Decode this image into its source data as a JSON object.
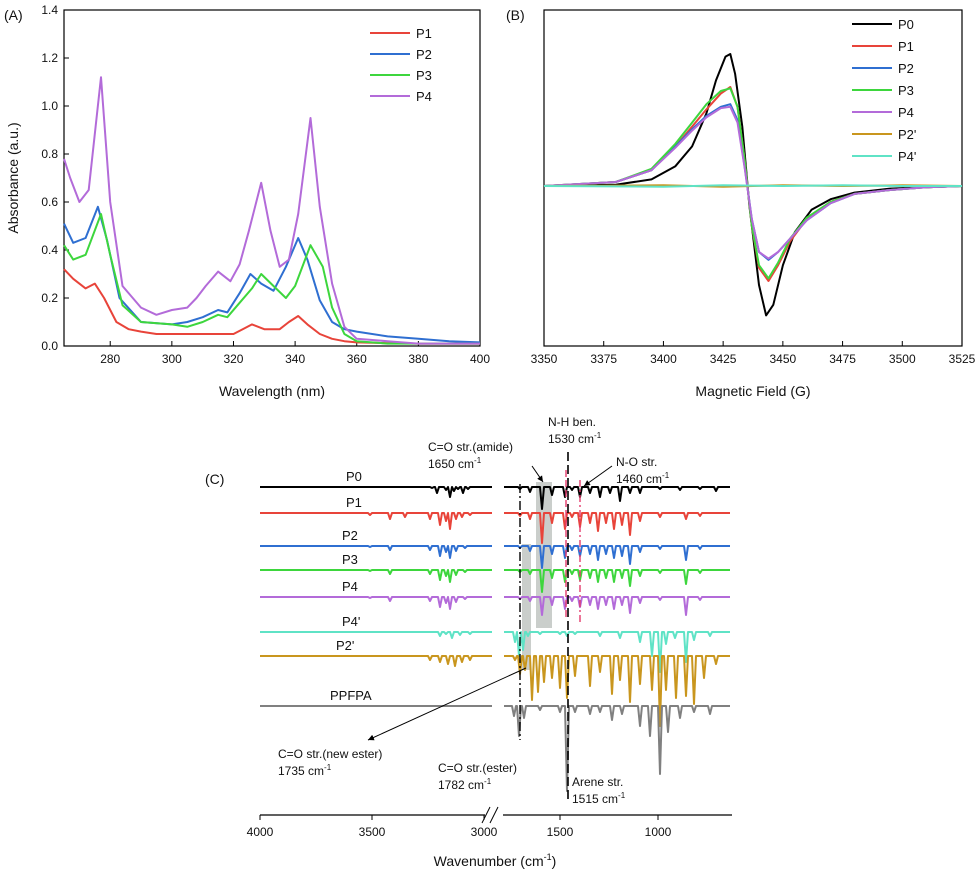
{
  "chart_data": [
    {
      "type": "line",
      "panel_label": "(A)",
      "xlabel": "Wavelength (nm)",
      "ylabel": "Absorbance (a.u.)",
      "xlim": [
        265,
        400
      ],
      "ylim": [
        0,
        1.4
      ],
      "xticks": [
        "280",
        "300",
        "320",
        "340",
        "360",
        "380",
        "400"
      ],
      "yticks": [
        "0.0",
        "0.2",
        "0.4",
        "0.6",
        "0.8",
        "1.0",
        "1.2",
        "1.4"
      ],
      "legend": "top-right",
      "series": [
        {
          "name": "P1",
          "color": "#e8443a",
          "x": [
            265,
            268,
            272,
            275,
            278,
            282,
            286,
            290,
            295,
            300,
            305,
            310,
            315,
            320,
            323,
            326,
            330,
            335,
            338,
            341,
            344,
            348,
            352,
            356,
            360,
            370,
            380,
            390,
            400
          ],
          "y": [
            0.32,
            0.28,
            0.24,
            0.26,
            0.2,
            0.1,
            0.07,
            0.06,
            0.05,
            0.05,
            0.05,
            0.05,
            0.05,
            0.05,
            0.07,
            0.09,
            0.07,
            0.07,
            0.1,
            0.125,
            0.09,
            0.05,
            0.03,
            0.02,
            0.015,
            0.012,
            0.01,
            0.01,
            0.01
          ]
        },
        {
          "name": "P2",
          "color": "#2f6fd1",
          "x": [
            265,
            268,
            272,
            276,
            279,
            283,
            290,
            300,
            305,
            310,
            315,
            318,
            322,
            325.5,
            329,
            333,
            337,
            341,
            344,
            348,
            352,
            356,
            360,
            370,
            380,
            390,
            400
          ],
          "y": [
            0.51,
            0.43,
            0.45,
            0.58,
            0.44,
            0.2,
            0.1,
            0.09,
            0.1,
            0.12,
            0.15,
            0.14,
            0.22,
            0.3,
            0.26,
            0.23,
            0.33,
            0.45,
            0.36,
            0.19,
            0.1,
            0.07,
            0.06,
            0.04,
            0.03,
            0.02,
            0.015
          ]
        },
        {
          "name": "P3",
          "color": "#3dd63d",
          "x": [
            265,
            268,
            272,
            277,
            280,
            284,
            290,
            300,
            305,
            310,
            315,
            318,
            322,
            326,
            329,
            333,
            337,
            340,
            345,
            349,
            352,
            356,
            360,
            370,
            380,
            390,
            400
          ],
          "y": [
            0.42,
            0.36,
            0.38,
            0.55,
            0.38,
            0.17,
            0.1,
            0.09,
            0.08,
            0.1,
            0.13,
            0.12,
            0.18,
            0.24,
            0.3,
            0.25,
            0.2,
            0.25,
            0.42,
            0.33,
            0.16,
            0.05,
            0.02,
            0.01,
            0.01,
            0.01,
            0.01
          ]
        },
        {
          "name": "P4",
          "color": "#b36bd9",
          "x": [
            265,
            267,
            270,
            273,
            277,
            280,
            284,
            290,
            295,
            300,
            305,
            308,
            311,
            315,
            319,
            322,
            325,
            329,
            332,
            335,
            338,
            341,
            345,
            348,
            352,
            356,
            360,
            370,
            380,
            390,
            400
          ],
          "y": [
            0.78,
            0.7,
            0.6,
            0.65,
            1.12,
            0.6,
            0.25,
            0.16,
            0.13,
            0.15,
            0.16,
            0.2,
            0.25,
            0.31,
            0.27,
            0.34,
            0.48,
            0.68,
            0.48,
            0.33,
            0.36,
            0.55,
            0.95,
            0.58,
            0.26,
            0.08,
            0.03,
            0.02,
            0.01,
            0.01,
            0.01
          ]
        }
      ]
    },
    {
      "type": "line",
      "panel_label": "(B)",
      "xlabel": "Magnetic Field (G)",
      "ylabel": "",
      "xlim": [
        3350,
        3525
      ],
      "ylim": [
        -1.1,
        1.1
      ],
      "xticks": [
        "3350",
        "3375",
        "3400",
        "3425",
        "3450",
        "3475",
        "3500",
        "3525"
      ],
      "legend": "top-right",
      "series": [
        {
          "name": "P0",
          "color": "#000000",
          "x": [
            3350,
            3380,
            3395,
            3405,
            3412,
            3418,
            3422,
            3426,
            3428,
            3430,
            3433,
            3436,
            3440,
            3443,
            3446,
            3450,
            3455,
            3462,
            3470,
            3480,
            3495,
            3510,
            3525
          ],
          "y": [
            0,
            0.01,
            0.05,
            0.15,
            0.3,
            0.55,
            0.8,
            0.98,
            1.0,
            0.85,
            0.45,
            -0.15,
            -0.75,
            -0.98,
            -0.9,
            -0.6,
            -0.35,
            -0.18,
            -0.1,
            -0.05,
            -0.02,
            -0.01,
            0
          ]
        },
        {
          "name": "P1",
          "color": "#e8443a",
          "x": [
            3350,
            3380,
            3395,
            3405,
            3412,
            3418,
            3424,
            3428,
            3431,
            3434,
            3437,
            3440,
            3444,
            3448,
            3453,
            3460,
            3470,
            3480,
            3495,
            3510,
            3525
          ],
          "y": [
            0,
            0.03,
            0.12,
            0.3,
            0.45,
            0.58,
            0.7,
            0.75,
            0.6,
            0.2,
            -0.3,
            -0.62,
            -0.72,
            -0.6,
            -0.42,
            -0.25,
            -0.12,
            -0.06,
            -0.03,
            -0.01,
            0
          ]
        },
        {
          "name": "P2",
          "color": "#2f6fd1",
          "x": [
            3350,
            3380,
            3395,
            3405,
            3412,
            3418,
            3424,
            3428,
            3431,
            3434,
            3437,
            3440,
            3444,
            3448,
            3453,
            3460,
            3470,
            3480,
            3495,
            3510,
            3525
          ],
          "y": [
            0,
            0.03,
            0.12,
            0.3,
            0.43,
            0.53,
            0.6,
            0.62,
            0.5,
            0.15,
            -0.25,
            -0.5,
            -0.56,
            -0.5,
            -0.4,
            -0.26,
            -0.13,
            -0.06,
            -0.03,
            -0.01,
            0
          ]
        },
        {
          "name": "P3",
          "color": "#3dd63d",
          "x": [
            3350,
            3380,
            3395,
            3405,
            3412,
            3418,
            3424,
            3428,
            3431,
            3434,
            3437,
            3440,
            3444,
            3448,
            3453,
            3460,
            3470,
            3480,
            3495,
            3510,
            3525
          ],
          "y": [
            0,
            0.03,
            0.13,
            0.32,
            0.48,
            0.62,
            0.72,
            0.74,
            0.6,
            0.2,
            -0.3,
            -0.6,
            -0.7,
            -0.58,
            -0.4,
            -0.24,
            -0.12,
            -0.06,
            -0.03,
            -0.01,
            0
          ]
        },
        {
          "name": "P4",
          "color": "#b36bd9",
          "x": [
            3350,
            3380,
            3395,
            3405,
            3412,
            3418,
            3424,
            3428,
            3431,
            3434,
            3437,
            3440,
            3444,
            3448,
            3453,
            3460,
            3470,
            3480,
            3495,
            3510,
            3525
          ],
          "y": [
            0,
            0.03,
            0.12,
            0.29,
            0.42,
            0.52,
            0.59,
            0.6,
            0.48,
            0.14,
            -0.25,
            -0.5,
            -0.55,
            -0.5,
            -0.4,
            -0.26,
            -0.13,
            -0.06,
            -0.03,
            -0.01,
            0
          ]
        },
        {
          "name": "P2'",
          "color": "#c9961e",
          "x": [
            3350,
            3400,
            3425,
            3450,
            3475,
            3500,
            3525
          ],
          "y": [
            0,
            0.005,
            -0.005,
            0.005,
            0,
            0.005,
            0
          ]
        },
        {
          "name": "P4'",
          "color": "#5fe3c6",
          "x": [
            3350,
            3400,
            3425,
            3450,
            3475,
            3500,
            3525
          ],
          "y": [
            0,
            -0.005,
            0.005,
            0,
            0.005,
            0,
            0
          ]
        }
      ]
    },
    {
      "type": "line",
      "panel_label": "(C)",
      "xlabel": "Wavenumber (cm",
      "xlabel_sup": "-1",
      "xlabel_close": ")",
      "xticks": [
        "4000",
        "3500",
        "3000",
        "1500",
        "1000"
      ],
      "offset_series": [
        {
          "name": "P0",
          "color": "#000000"
        },
        {
          "name": "P1",
          "color": "#e8443a"
        },
        {
          "name": "P2",
          "color": "#2f6fd1"
        },
        {
          "name": "P3",
          "color": "#3dd63d"
        },
        {
          "name": "P4",
          "color": "#b36bd9"
        },
        {
          "name": "P4'",
          "color": "#5fe3c6"
        },
        {
          "name": "P2'",
          "color": "#c9961e"
        },
        {
          "name": "PPFPA",
          "color": "#808080"
        }
      ],
      "annotations": {
        "amide": {
          "line1": "C=O str.(amide)",
          "line2": "1650 cm",
          "sup": "-1"
        },
        "nh": {
          "line1": "N-H ben.",
          "line2": "1530 cm",
          "sup": "-1"
        },
        "no": {
          "line1": "N-O str.",
          "line2": "1460 cm",
          "sup": "-1"
        },
        "newester": {
          "line1": "C=O str.(new ester)",
          "line2": "1735 cm",
          "sup": "-1"
        },
        "ester": {
          "line1": "C=O str.(ester)",
          "line2": "1782 cm",
          "sup": "-1"
        },
        "arene": {
          "line1": "Arene str.",
          "line2": "1515 cm",
          "sup": "-1"
        }
      }
    }
  ]
}
